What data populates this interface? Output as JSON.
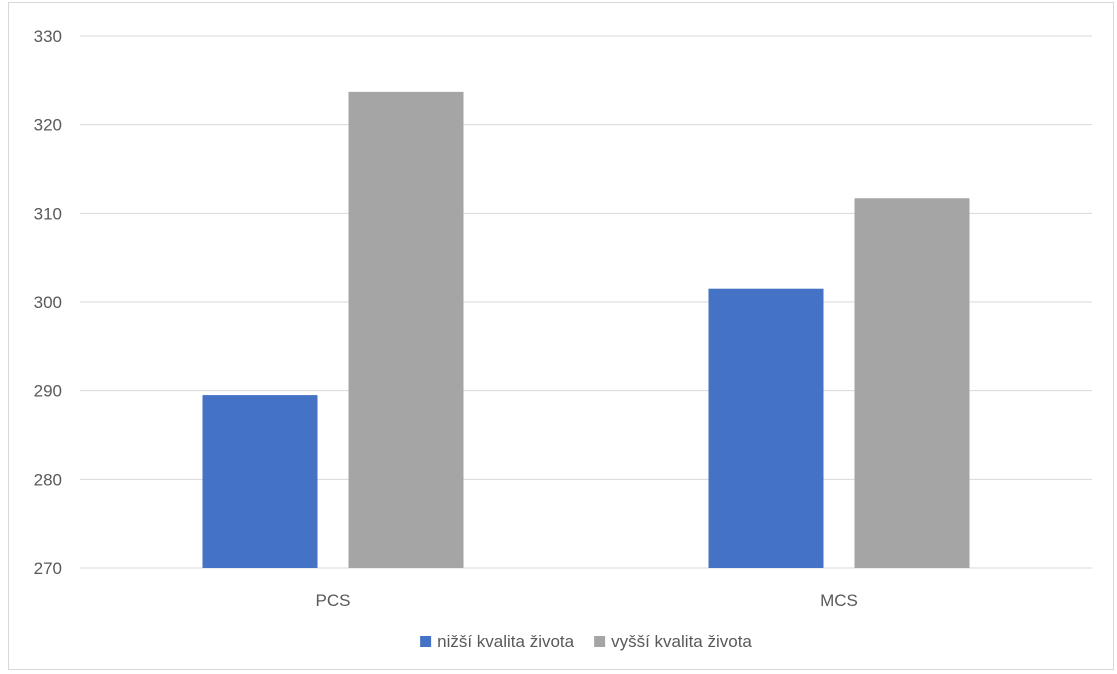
{
  "chart_data": {
    "type": "bar",
    "title": "",
    "xlabel": "",
    "ylabel": "",
    "categories": [
      "PCS",
      "MCS"
    ],
    "series": [
      {
        "name": "nižší kvalita života",
        "color": "#4472c4",
        "values": [
          289.5,
          301.5
        ]
      },
      {
        "name": "vyšší kvalita života",
        "color": "#a5a5a5",
        "values": [
          323.7,
          311.7
        ]
      }
    ],
    "ylim": [
      270,
      330
    ],
    "yticks": [
      270,
      280,
      290,
      300,
      310,
      320,
      330
    ],
    "grid": true,
    "legend": "bottom"
  }
}
